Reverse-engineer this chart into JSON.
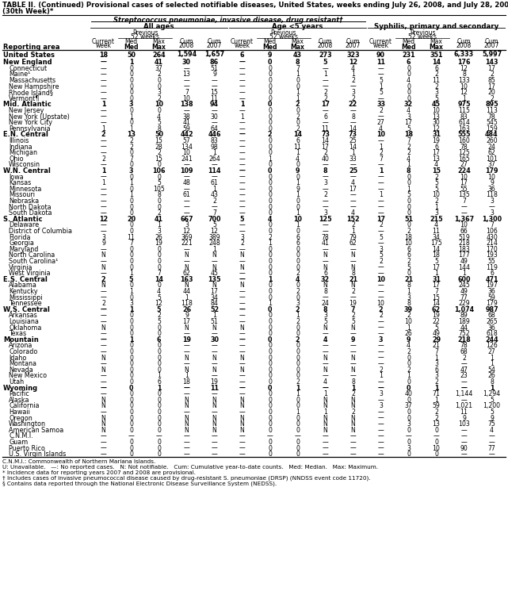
{
  "title_line1": "TABLE II. (Continued) Provisional cases of selected notifiable diseases, United States, weeks ending July 26, 2008, and July 28, 2007",
  "title_line2": "(30th Week)*",
  "col_group1": "Streptococcus pneumoniae, invasive disease, drug resistant†",
  "col_group1a": "All ages",
  "col_group1b": "Age <5 years",
  "col_group2": "Syphilis, primary and secondary",
  "rows": [
    [
      "United States",
      "18",
      "50",
      "264",
      "1,594",
      "1,657",
      "6",
      "9",
      "43",
      "273",
      "323",
      "90",
      "231",
      "351",
      "6,333",
      "5,997"
    ],
    [
      "New England",
      "—",
      "1",
      "41",
      "30",
      "86",
      "—",
      "0",
      "8",
      "5",
      "12",
      "11",
      "6",
      "14",
      "176",
      "143"
    ],
    [
      "Connecticut",
      "—",
      "0",
      "37",
      "—",
      "51",
      "—",
      "0",
      "7",
      "—",
      "4",
      "—",
      "0",
      "6",
      "12",
      "17"
    ],
    [
      "Maine¹",
      "—",
      "0",
      "2",
      "13",
      "9",
      "—",
      "0",
      "1",
      "1",
      "1",
      "—",
      "0",
      "2",
      "8",
      "2"
    ],
    [
      "Massachusetts",
      "—",
      "0",
      "0",
      "—",
      "—",
      "—",
      "0",
      "0",
      "—",
      "2",
      "5",
      "4",
      "11",
      "133",
      "85"
    ],
    [
      "New Hampshire",
      "—",
      "0",
      "0",
      "—",
      "—",
      "—",
      "0",
      "0",
      "—",
      "—",
      "1",
      "0",
      "2",
      "10",
      "17"
    ],
    [
      "Rhode Island§",
      "—",
      "0",
      "3",
      "7",
      "15",
      "—",
      "0",
      "1",
      "2",
      "3",
      "5",
      "0",
      "3",
      "12",
      "20"
    ],
    [
      "Vermont¶",
      "—",
      "0",
      "2",
      "10",
      "11",
      "—",
      "0",
      "1",
      "2",
      "2",
      "—",
      "0",
      "5",
      "1",
      "2"
    ],
    [
      "Mid. Atlantic",
      "1",
      "3",
      "10",
      "138",
      "94",
      "1",
      "0",
      "2",
      "17",
      "22",
      "33",
      "32",
      "45",
      "975",
      "895"
    ],
    [
      "New Jersey",
      "—",
      "0",
      "0",
      "—",
      "—",
      "—",
      "0",
      "0",
      "—",
      "—",
      "2",
      "4",
      "10",
      "115",
      "113"
    ],
    [
      "New York (Upstate)",
      "—",
      "1",
      "4",
      "38",
      "30",
      "1",
      "0",
      "2",
      "6",
      "8",
      "—",
      "3",
      "13",
      "83",
      "78"
    ],
    [
      "New York City",
      "—",
      "0",
      "5",
      "41",
      "—",
      "—",
      "0",
      "0",
      "—",
      "—",
      "27",
      "17",
      "30",
      "614",
      "545"
    ],
    [
      "Pennsylvania",
      "1",
      "1",
      "8",
      "59",
      "64",
      "—",
      "0",
      "2",
      "11",
      "14",
      "4",
      "5",
      "12",
      "163",
      "159"
    ],
    [
      "E.N. Central",
      "2",
      "13",
      "50",
      "442",
      "446",
      "—",
      "2",
      "14",
      "73",
      "73",
      "10",
      "18",
      "31",
      "555",
      "484"
    ],
    [
      "Illinois",
      "—",
      "2",
      "15",
      "57",
      "83",
      "—",
      "0",
      "6",
      "14",
      "25",
      "—",
      "7",
      "19",
      "160",
      "260"
    ],
    [
      "Indiana",
      "—",
      "2",
      "28",
      "134",
      "98",
      "—",
      "0",
      "11",
      "17",
      "14",
      "1",
      "2",
      "6",
      "78",
      "24"
    ],
    [
      "Michigan",
      "—",
      "0",
      "2",
      "10",
      "1",
      "—",
      "0",
      "1",
      "2",
      "1",
      "2",
      "2",
      "17",
      "125",
      "62"
    ],
    [
      "Ohio",
      "2",
      "7",
      "15",
      "241",
      "264",
      "—",
      "1",
      "4",
      "40",
      "33",
      "7",
      "4",
      "13",
      "165",
      "101"
    ],
    [
      "Wisconsin",
      "—",
      "0",
      "0",
      "—",
      "—",
      "—",
      "0",
      "0",
      "—",
      "—",
      "—",
      "1",
      "4",
      "27",
      "37"
    ],
    [
      "W.N. Central",
      "1",
      "3",
      "106",
      "109",
      "114",
      "—",
      "0",
      "9",
      "8",
      "25",
      "1",
      "8",
      "15",
      "224",
      "179"
    ],
    [
      "Iowa",
      "—",
      "0",
      "0",
      "—",
      "—",
      "—",
      "0",
      "0",
      "—",
      "—",
      "—",
      "0",
      "2",
      "10",
      "10"
    ],
    [
      "Kansas",
      "1",
      "1",
      "5",
      "48",
      "61",
      "—",
      "0",
      "1",
      "3",
      "4",
      "—",
      "0",
      "5",
      "17",
      "9"
    ],
    [
      "Minnesota",
      "—",
      "0",
      "105",
      "—",
      "1",
      "—",
      "0",
      "9",
      "—",
      "17",
      "—",
      "1",
      "5",
      "55",
      "36"
    ],
    [
      "Missouri",
      "—",
      "1",
      "8",
      "61",
      "43",
      "—",
      "0",
      "1",
      "2",
      "—",
      "1",
      "5",
      "10",
      "135",
      "118"
    ],
    [
      "Nebraska",
      "—",
      "0",
      "0",
      "—",
      "2",
      "—",
      "0",
      "0",
      "—",
      "—",
      "—",
      "0",
      "2",
      "7",
      "3"
    ],
    [
      "North Dakota",
      "—",
      "0",
      "0",
      "—",
      "—",
      "—",
      "0",
      "0",
      "—",
      "—",
      "—",
      "0",
      "1",
      "—",
      "—"
    ],
    [
      "South Dakota",
      "—",
      "0",
      "2",
      "—",
      "7",
      "—",
      "0",
      "1",
      "3",
      "4",
      "—",
      "0",
      "3",
      "—",
      "3"
    ],
    [
      "S. Atlantic",
      "12",
      "20",
      "41",
      "667",
      "700",
      "5",
      "4",
      "10",
      "125",
      "152",
      "17",
      "51",
      "215",
      "1,367",
      "1,300"
    ],
    [
      "Delaware",
      "—",
      "0",
      "1",
      "3",
      "5",
      "—",
      "0",
      "1",
      "—",
      "2",
      "2",
      "0",
      "4",
      "10",
      "7"
    ],
    [
      "District of Columbia",
      "—",
      "0",
      "3",
      "12",
      "12",
      "—",
      "0",
      "0",
      "—",
      "1",
      "—",
      "2",
      "11",
      "66",
      "106"
    ],
    [
      "Florida",
      "3",
      "11",
      "26",
      "369",
      "389",
      "3",
      "2",
      "6",
      "78",
      "79",
      "5",
      "18",
      "34",
      "519",
      "430"
    ],
    [
      "Georgia",
      "9",
      "7",
      "19",
      "221",
      "248",
      "2",
      "1",
      "6",
      "41",
      "62",
      "—",
      "10",
      "175",
      "218",
      "214"
    ],
    [
      "Maryland",
      "—",
      "0",
      "0",
      "—",
      "1",
      "—",
      "0",
      "0",
      "—",
      "—",
      "3",
      "6",
      "14",
      "183",
      "170"
    ],
    [
      "North Carolina",
      "N",
      "0",
      "0",
      "N",
      "N",
      "N",
      "0",
      "0",
      "N",
      "N",
      "5",
      "6",
      "18",
      "177",
      "193"
    ],
    [
      "South Carolina¹",
      "—",
      "0",
      "0",
      "—",
      "—",
      "—",
      "0",
      "0",
      "—",
      "—",
      "2",
      "2",
      "5",
      "49",
      "55"
    ],
    [
      "Virginia",
      "N",
      "0",
      "0",
      "N",
      "N",
      "N",
      "0",
      "0",
      "N",
      "N",
      "—",
      "5",
      "17",
      "144",
      "119"
    ],
    [
      "West Virginia",
      "—",
      "1",
      "7",
      "62",
      "45",
      "—",
      "0",
      "2",
      "6",
      "8",
      "—",
      "0",
      "1",
      "1",
      "6"
    ],
    [
      "E.S. Central",
      "2",
      "5",
      "14",
      "163",
      "135",
      "—",
      "1",
      "4",
      "32",
      "21",
      "10",
      "21",
      "31",
      "600",
      "471"
    ],
    [
      "Alabama",
      "N",
      "0",
      "0",
      "N",
      "N",
      "N",
      "0",
      "0",
      "N",
      "N",
      "—",
      "8",
      "17",
      "245",
      "197"
    ],
    [
      "Kentucky",
      "—",
      "1",
      "4",
      "44",
      "17",
      "—",
      "0",
      "2",
      "8",
      "2",
      "—",
      "1",
      "7",
      "49",
      "36"
    ],
    [
      "Mississippi",
      "—",
      "0",
      "5",
      "1",
      "34",
      "—",
      "0",
      "0",
      "—",
      "—",
      "—",
      "3",
      "15",
      "77",
      "59"
    ],
    [
      "Tennessee",
      "2",
      "3",
      "12",
      "118",
      "84",
      "—",
      "1",
      "3",
      "24",
      "19",
      "10",
      "8",
      "14",
      "229",
      "179"
    ],
    [
      "W.S. Central",
      "—",
      "1",
      "5",
      "26",
      "52",
      "—",
      "0",
      "2",
      "8",
      "7",
      "2",
      "39",
      "62",
      "1,074",
      "987"
    ],
    [
      "Arkansas",
      "—",
      "0",
      "2",
      "9",
      "1",
      "—",
      "0",
      "1",
      "3",
      "2",
      "2",
      "2",
      "19",
      "89",
      "68"
    ],
    [
      "Louisiana",
      "—",
      "0",
      "5",
      "17",
      "51",
      "—",
      "0",
      "2",
      "5",
      "5",
      "—",
      "10",
      "22",
      "189",
      "265"
    ],
    [
      "Oklahoma",
      "N",
      "0",
      "0",
      "N",
      "N",
      "N",
      "0",
      "0",
      "N",
      "N",
      "—",
      "1",
      "5",
      "44",
      "36"
    ],
    [
      "Texas",
      "—",
      "0",
      "0",
      "—",
      "—",
      "—",
      "0",
      "0",
      "—",
      "—",
      "—",
      "26",
      "49",
      "752",
      "618"
    ],
    [
      "Mountain",
      "—",
      "1",
      "6",
      "19",
      "30",
      "—",
      "0",
      "2",
      "4",
      "9",
      "3",
      "9",
      "29",
      "218",
      "244"
    ],
    [
      "Arizona",
      "—",
      "0",
      "0",
      "—",
      "—",
      "—",
      "0",
      "0",
      "—",
      "—",
      "—",
      "4",
      "21",
      "78",
      "126"
    ],
    [
      "Colorado",
      "—",
      "0",
      "0",
      "—",
      "—",
      "—",
      "0",
      "0",
      "—",
      "—",
      "—",
      "2",
      "7",
      "68",
      "27"
    ],
    [
      "Idaho",
      "N",
      "0",
      "0",
      "N",
      "N",
      "N",
      "0",
      "0",
      "N",
      "N",
      "—",
      "0",
      "1",
      "2",
      "1"
    ],
    [
      "Montana",
      "—",
      "0",
      "0",
      "—",
      "—",
      "—",
      "0",
      "0",
      "—",
      "—",
      "—",
      "0",
      "3",
      "—",
      "1"
    ],
    [
      "Nevada",
      "N",
      "0",
      "0",
      "N",
      "N",
      "N",
      "0",
      "0",
      "N",
      "N",
      "2",
      "2",
      "6",
      "47",
      "54"
    ],
    [
      "New Mexico",
      "—",
      "0",
      "1",
      "1",
      "—",
      "—",
      "0",
      "0",
      "—",
      "—",
      "1",
      "1",
      "3",
      "23",
      "26"
    ],
    [
      "Utah",
      "—",
      "0",
      "6",
      "18",
      "19",
      "—",
      "0",
      "2",
      "4",
      "8",
      "—",
      "0",
      "2",
      "—",
      "8"
    ],
    [
      "Wyoming",
      "—",
      "0",
      "1",
      "—",
      "11",
      "—",
      "0",
      "1",
      "—",
      "1",
      "—",
      "0",
      "1",
      "—",
      "1"
    ],
    [
      "Pacific",
      "—",
      "0",
      "0",
      "—",
      "—",
      "—",
      "0",
      "1",
      "1",
      "2",
      "3",
      "40",
      "71",
      "1,144",
      "1,294"
    ],
    [
      "Alaska",
      "N",
      "0",
      "0",
      "N",
      "N",
      "N",
      "0",
      "0",
      "N",
      "N",
      "—",
      "0",
      "1",
      "—",
      "5"
    ],
    [
      "California",
      "N",
      "0",
      "0",
      "N",
      "N",
      "N",
      "0",
      "0",
      "N",
      "N",
      "3",
      "37",
      "59",
      "1,021",
      "1,200"
    ],
    [
      "Hawaii",
      "—",
      "0",
      "0",
      "—",
      "—",
      "—",
      "0",
      "1",
      "1",
      "2",
      "—",
      "0",
      "2",
      "11",
      "5"
    ],
    [
      "Oregon",
      "N",
      "0",
      "0",
      "N",
      "N",
      "N",
      "0",
      "0",
      "N",
      "N",
      "—",
      "0",
      "2",
      "9",
      "9"
    ],
    [
      "Washington",
      "N",
      "0",
      "0",
      "N",
      "N",
      "N",
      "0",
      "0",
      "N",
      "N",
      "—",
      "3",
      "13",
      "103",
      "75"
    ],
    [
      "American Samoa",
      "N",
      "0",
      "0",
      "N",
      "N",
      "N",
      "0",
      "0",
      "N",
      "N",
      "—",
      "0",
      "0",
      "—",
      "4"
    ],
    [
      "C.N.M.I.",
      "—",
      "—",
      "—",
      "—",
      "—",
      "—",
      "—",
      "—",
      "—",
      "—",
      "—",
      "—",
      "—",
      "—",
      "—"
    ],
    [
      "Guam",
      "—",
      "0",
      "0",
      "—",
      "—",
      "—",
      "0",
      "0",
      "—",
      "—",
      "—",
      "0",
      "0",
      "—",
      "—"
    ],
    [
      "Puerto Rico",
      "—",
      "0",
      "0",
      "—",
      "—",
      "—",
      "0",
      "0",
      "—",
      "—",
      "—",
      "3",
      "10",
      "90",
      "77"
    ],
    [
      "U.S. Virgin Islands",
      "—",
      "0",
      "0",
      "—",
      "—",
      "—",
      "0",
      "0",
      "—",
      "—",
      "—",
      "0",
      "0",
      "—",
      "—"
    ]
  ],
  "bold_row_indices": [
    0,
    1,
    8,
    13,
    19,
    27,
    37,
    42,
    47,
    55
  ],
  "us_row_index": 0,
  "footnotes": [
    "C.N.M.I.: Commonwealth of Northern Mariana Islands.",
    "U: Unavailable.   —: No reported cases.   N: Not notifiable.   Cum: Cumulative year-to-date counts.   Med: Median.   Max: Maximum.",
    "* Incidence data for reporting years 2007 and 2008 are provisional.",
    "† Includes cases of invasive pneumococcal disease caused by drug-resistant S. pneumoniae (DRSP) (NNDSS event code 11720).",
    "§ Contains data reported through the National Electronic Disease Surveillance System (NEDSS)."
  ]
}
